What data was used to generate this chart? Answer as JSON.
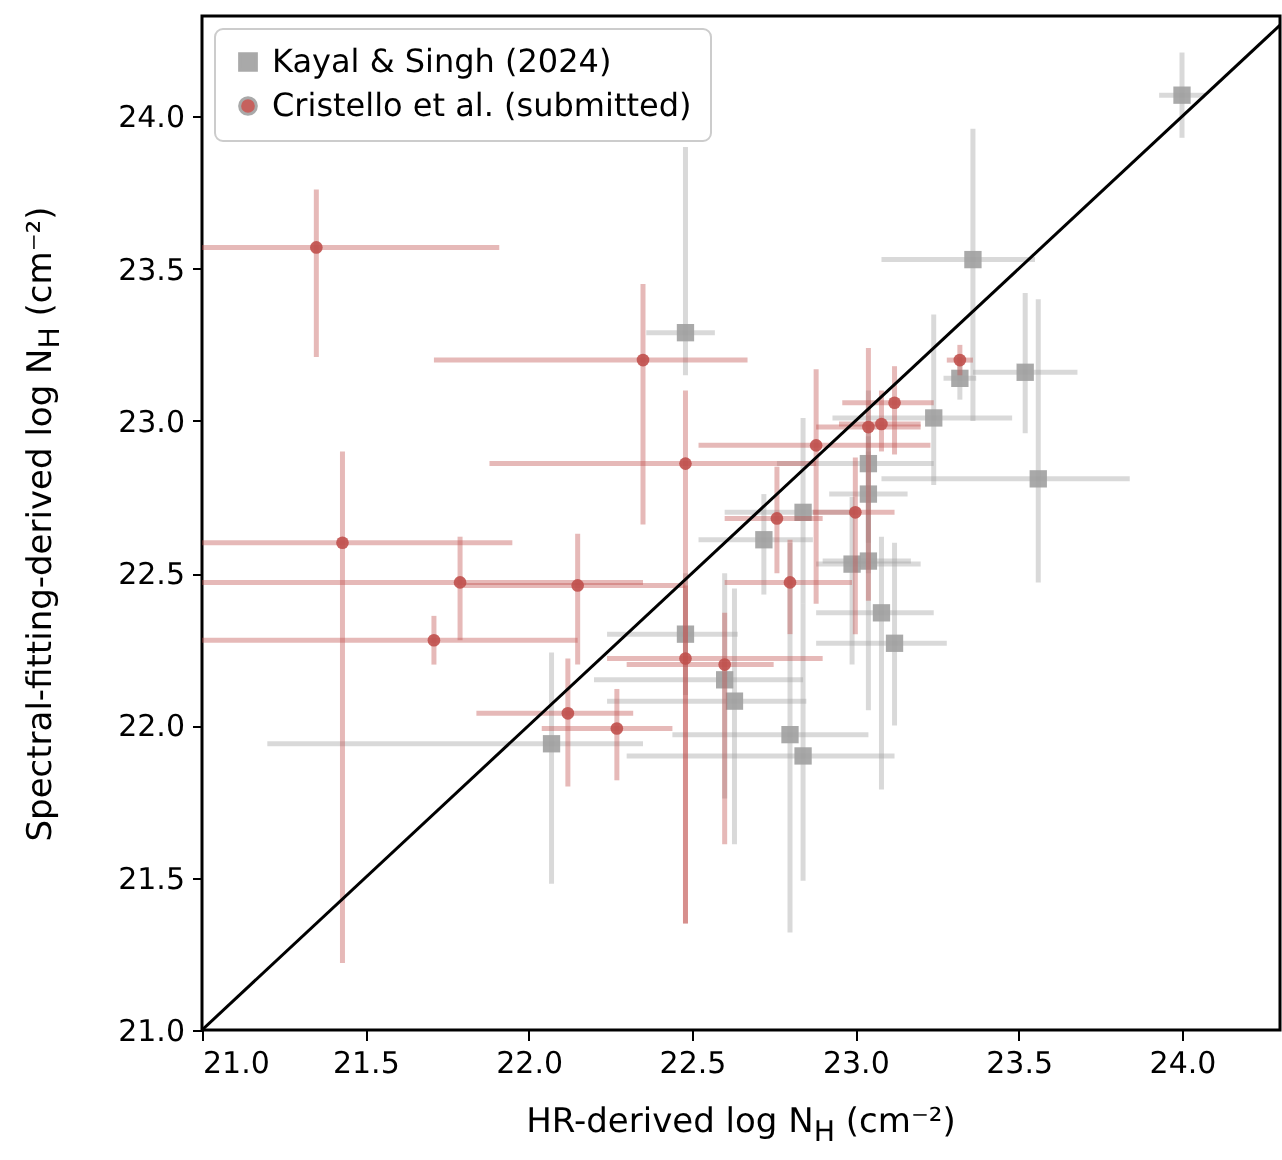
{
  "chart_data": {
    "type": "scatter",
    "xlabel": "HR-derived log N$_{H}$ (cm⁻²)",
    "ylabel": "Spectral-fitting-derived log N$_{H}$ (cm⁻²)",
    "xlim": [
      21,
      24.3
    ],
    "ylim": [
      21,
      24.33
    ],
    "xticks": [
      {
        "value": 21,
        "label": "21.0"
      },
      {
        "value": 21.5,
        "label": "21.5"
      },
      {
        "value": 22,
        "label": "22.0"
      },
      {
        "value": 22.5,
        "label": "22.5"
      },
      {
        "value": 23,
        "label": "23.0"
      },
      {
        "value": 23.5,
        "label": "23.5"
      },
      {
        "value": 24,
        "label": "24.0"
      }
    ],
    "yticks": [
      {
        "value": 21,
        "label": "21.0"
      },
      {
        "value": 21.5,
        "label": "21.5"
      },
      {
        "value": 22,
        "label": "22.0"
      },
      {
        "value": 22.5,
        "label": "22.5"
      },
      {
        "value": 23,
        "label": "23.0"
      },
      {
        "value": 23.5,
        "label": "23.5"
      },
      {
        "value": 24,
        "label": "24.0"
      }
    ],
    "legend": "top left",
    "series": [
      {
        "name": "Kayal & Singh (2024)",
        "color": "#a0a0a0",
        "marker": "square",
        "x": [
          24.0,
          23.36,
          22.48,
          23.52,
          23.32,
          23.24,
          23.56,
          23.04,
          23.04,
          22.72,
          22.84,
          22.99,
          23.04,
          23.08,
          23.12,
          22.48,
          22.6,
          22.63,
          22.8,
          22.84,
          22.07
        ],
        "values": [
          24.07,
          23.53,
          23.29,
          23.16,
          23.14,
          23.01,
          22.81,
          22.86,
          22.76,
          22.61,
          22.7,
          22.53,
          22.54,
          22.37,
          22.27,
          22.3,
          22.15,
          22.08,
          21.97,
          21.9,
          21.94
        ],
        "xerrors": [
          [
            23.93,
            24.07
          ],
          [
            23.08,
            23.55
          ],
          [
            22.36,
            22.57
          ],
          [
            23.36,
            23.68
          ],
          [
            23.27,
            23.37
          ],
          [
            22.93,
            23.48
          ],
          [
            23.08,
            23.84
          ],
          [
            22.76,
            23.24
          ],
          [
            22.92,
            23.16
          ],
          [
            22.52,
            22.87
          ],
          [
            22.6,
            23.0
          ],
          [
            22.88,
            23.2
          ],
          [
            22.9,
            23.17
          ],
          [
            22.88,
            23.24
          ],
          [
            22.88,
            23.28
          ],
          [
            22.24,
            22.64
          ],
          [
            22.2,
            22.84
          ],
          [
            22.24,
            22.85
          ],
          [
            22.44,
            23.04
          ],
          [
            22.3,
            23.12
          ],
          [
            21.2,
            22.35
          ]
        ],
        "errors": [
          [
            23.93,
            24.21
          ],
          [
            23.0,
            23.96
          ],
          [
            23.15,
            23.9
          ],
          [
            22.96,
            23.42
          ],
          [
            23.07,
            23.21
          ],
          [
            22.79,
            23.35
          ],
          [
            22.47,
            23.4
          ],
          [
            22.6,
            23.1
          ],
          [
            22.5,
            22.95
          ],
          [
            22.43,
            22.76
          ],
          [
            22.4,
            23.01
          ],
          [
            22.2,
            22.75
          ],
          [
            22.05,
            22.9
          ],
          [
            21.79,
            22.62
          ],
          [
            22.0,
            22.6
          ],
          [
            22.1,
            22.5
          ],
          [
            21.76,
            22.5
          ],
          [
            21.61,
            22.45
          ],
          [
            21.32,
            22.6
          ],
          [
            21.49,
            22.4
          ],
          [
            21.48,
            22.24
          ]
        ]
      },
      {
        "name": "Cristello et al. (submitted)",
        "color": "#c0504d",
        "marker": "circle",
        "x": [
          21.35,
          22.35,
          22.48,
          21.43,
          21.79,
          22.15,
          21.71,
          22.12,
          22.27,
          22.48,
          22.6,
          22.8,
          22.76,
          23.0,
          22.88,
          23.04,
          23.08,
          23.12,
          23.32
        ],
        "values": [
          23.57,
          23.2,
          22.86,
          22.6,
          22.47,
          22.46,
          22.28,
          22.04,
          21.99,
          22.22,
          22.2,
          22.47,
          22.68,
          22.7,
          22.92,
          22.98,
          22.99,
          23.06,
          23.2
        ],
        "xerrors": [
          [
            21.0,
            21.91
          ],
          [
            21.71,
            22.67
          ],
          [
            21.88,
            22.88
          ],
          [
            21.0,
            21.95
          ],
          [
            21.0,
            22.35
          ],
          [
            21.8,
            22.48
          ],
          [
            21.0,
            22.15
          ],
          [
            21.84,
            22.32
          ],
          [
            22.04,
            22.44
          ],
          [
            22.24,
            22.9
          ],
          [
            22.3,
            22.75
          ],
          [
            22.6,
            22.99
          ],
          [
            22.6,
            22.9
          ],
          [
            22.87,
            23.12
          ],
          [
            22.52,
            23.23
          ],
          [
            22.88,
            23.2
          ],
          [
            22.95,
            23.2
          ],
          [
            22.96,
            23.24
          ],
          [
            23.28,
            23.36
          ]
        ],
        "errors": [
          [
            23.21,
            23.76
          ],
          [
            22.66,
            23.45
          ],
          [
            21.35,
            23.1
          ],
          [
            21.22,
            22.9
          ],
          [
            22.28,
            22.62
          ],
          [
            22.2,
            22.63
          ],
          [
            22.2,
            22.36
          ],
          [
            21.8,
            22.22
          ],
          [
            21.82,
            22.12
          ],
          [
            21.35,
            22.46
          ],
          [
            21.61,
            22.37
          ],
          [
            22.3,
            22.61
          ],
          [
            22.5,
            22.85
          ],
          [
            22.3,
            22.88
          ],
          [
            22.4,
            23.17
          ],
          [
            22.41,
            23.24
          ],
          [
            22.9,
            23.1
          ],
          [
            22.89,
            23.18
          ],
          [
            23.15,
            23.25
          ]
        ]
      },
      {
        "type": "line",
        "color": "#000000",
        "x": [
          21,
          24.3
        ],
        "values": [
          21,
          24.3
        ]
      }
    ]
  }
}
